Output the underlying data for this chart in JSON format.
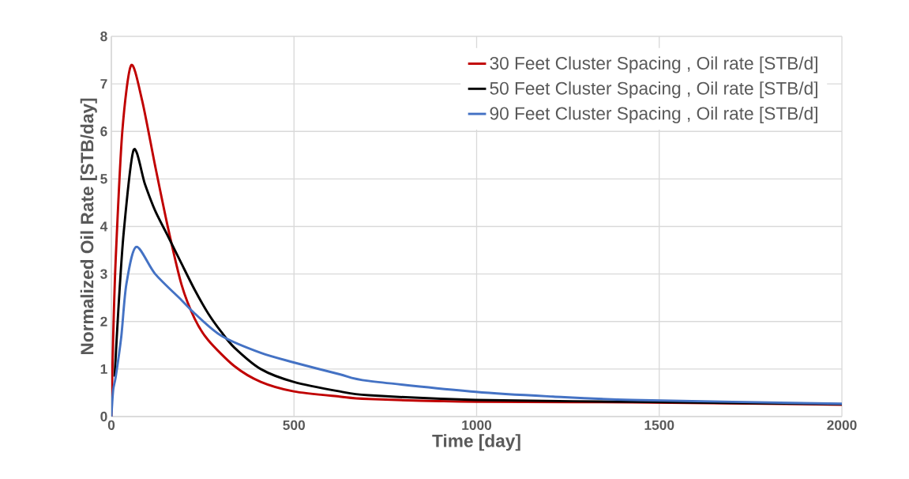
{
  "chart_data": {
    "type": "line",
    "xlabel": "Time [day]",
    "ylabel": "Normalized Oil Rate [STB/day]",
    "xlim": [
      0,
      2000
    ],
    "ylim": [
      0,
      8
    ],
    "xticks": [
      0,
      500,
      1000,
      1500,
      2000
    ],
    "yticks": [
      0,
      1,
      2,
      3,
      4,
      5,
      6,
      7,
      8
    ],
    "grid": true,
    "legend": "top right",
    "marker": "none",
    "line_style": "solid",
    "series": [
      {
        "name": "30 Feet Cluster Spacing , Oil rate [STB/d]",
        "color": "#c00000",
        "x": [
          0,
          5,
          12,
          30,
          54,
          84,
          120,
          156,
          192,
          228,
          265,
          337,
          409,
          499,
          625,
          704,
          998,
          1425,
          2000
        ],
        "values": [
          0,
          1.67,
          3.33,
          6.0,
          7.39,
          6.66,
          5.27,
          3.94,
          2.78,
          2.06,
          1.61,
          1.06,
          0.73,
          0.53,
          0.42,
          0.37,
          0.31,
          0.3,
          0.25
        ]
      },
      {
        "name": "50 Feet Cluster Spacing , Oil rate [STB/d]",
        "color": "#000000",
        "x": [
          9,
          19,
          34,
          61,
          92,
          120,
          156,
          192,
          228,
          265,
          301,
          337,
          409,
          499,
          625,
          704,
          998,
          1425,
          2000
        ],
        "values": [
          0.84,
          2.23,
          3.89,
          5.61,
          4.89,
          4.33,
          3.78,
          3.22,
          2.67,
          2.17,
          1.78,
          1.45,
          1.0,
          0.73,
          0.53,
          0.45,
          0.35,
          0.31,
          0.26
        ]
      },
      {
        "name": "90 Feet Cluster Spacing , Oil rate [STB/d]",
        "color": "#4472c4",
        "x": [
          0,
          5,
          12,
          27,
          41,
          68,
          120,
          192,
          228,
          301,
          409,
          499,
          625,
          704,
          998,
          1209,
          1425,
          2000
        ],
        "values": [
          0,
          0.56,
          0.84,
          1.67,
          2.78,
          3.57,
          3.0,
          2.45,
          2.17,
          1.7,
          1.34,
          1.14,
          0.89,
          0.75,
          0.52,
          0.42,
          0.35,
          0.27
        ]
      }
    ]
  }
}
